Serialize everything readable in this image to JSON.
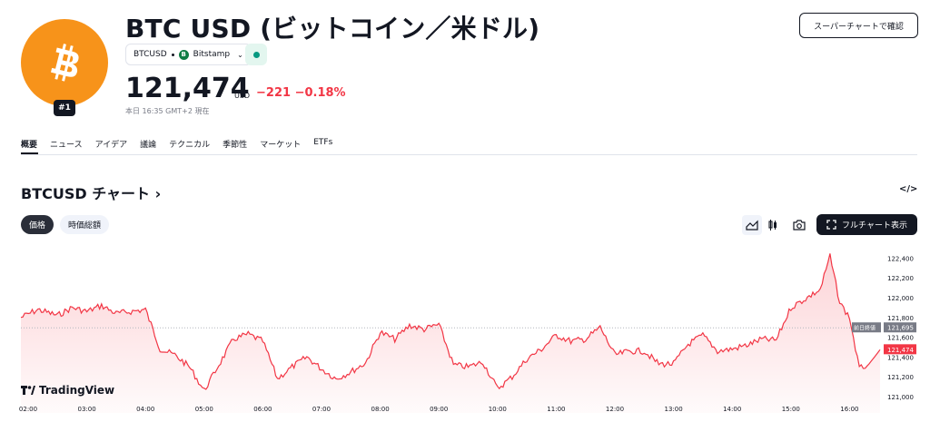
{
  "header": {
    "title": "BTC USD (ビットコイン／米ドル)",
    "rank_badge": "#1",
    "symbol": "BTCUSD",
    "exchange": "Bitstamp",
    "exchange_icon_letter": "B",
    "price": "121,474",
    "currency": "USD",
    "change": "−221",
    "change_pct": "−0.18%",
    "as_of": "本日 16:35 GMT+2 現在",
    "super_chart_button": "スーパーチャートで確認",
    "brand_color": "#f7931a",
    "down_color": "#f23645"
  },
  "tabs": [
    {
      "label": "概要",
      "active": true
    },
    {
      "label": "ニュース"
    },
    {
      "label": "アイデア"
    },
    {
      "label": "議論"
    },
    {
      "label": "テクニカル"
    },
    {
      "label": "季節性"
    },
    {
      "label": "マーケット"
    },
    {
      "label": "ETFs"
    }
  ],
  "section": {
    "title": "BTCUSD チャート",
    "title_chevron": "›",
    "embed_icon": "</>"
  },
  "controls": {
    "pill_price": "価格",
    "pill_marketcap": "時価総額",
    "fullscreen_button": "フルチャート表示",
    "icons": [
      "area-chart-icon",
      "candles-icon",
      "camera-icon",
      "fullscreen-icon"
    ]
  },
  "branding": {
    "tradingview": "TradingView"
  },
  "chart_data": {
    "type": "area",
    "x_ticks": [
      "02:00",
      "03:00",
      "04:00",
      "05:00",
      "06:00",
      "07:00",
      "08:00",
      "09:00",
      "10:00",
      "11:00",
      "12:00",
      "13:00",
      "14:00",
      "15:00",
      "16:00"
    ],
    "y_ticks": [
      "122,400",
      "122,200",
      "122,000",
      "121,800",
      "121,600",
      "121,400",
      "121,200",
      "121,000"
    ],
    "ylim": [
      121000,
      122450
    ],
    "x": [
      "01:50",
      "02:10",
      "02:30",
      "02:45",
      "03:00",
      "03:15",
      "03:30",
      "03:45",
      "04:00",
      "04:15",
      "04:30",
      "04:45",
      "05:00",
      "05:15",
      "05:30",
      "05:45",
      "06:00",
      "06:15",
      "06:30",
      "06:45",
      "07:00",
      "07:15",
      "07:30",
      "07:45",
      "08:00",
      "08:15",
      "08:30",
      "08:45",
      "09:00",
      "09:15",
      "09:30",
      "09:45",
      "10:00",
      "10:15",
      "10:30",
      "10:45",
      "11:00",
      "11:15",
      "11:30",
      "11:45",
      "12:00",
      "12:15",
      "12:30",
      "12:45",
      "13:00",
      "13:15",
      "13:30",
      "13:45",
      "14:00",
      "14:15",
      "14:30",
      "14:45",
      "15:00",
      "15:15",
      "15:30",
      "15:40",
      "15:50",
      "16:00",
      "16:10",
      "16:20",
      "16:35"
    ],
    "values": [
      121800,
      121880,
      121820,
      121900,
      121860,
      121920,
      121840,
      121860,
      121880,
      121480,
      121420,
      121300,
      121060,
      121320,
      121580,
      121630,
      121560,
      121180,
      121300,
      121400,
      121280,
      121180,
      121250,
      121340,
      121650,
      121580,
      121720,
      121680,
      121730,
      121320,
      121300,
      121350,
      121080,
      121200,
      121380,
      121480,
      121620,
      121560,
      121580,
      121700,
      121420,
      121460,
      121460,
      121330,
      121330,
      121530,
      121620,
      121460,
      121480,
      121520,
      121580,
      121570,
      121900,
      121990,
      122080,
      122420,
      121950,
      121800,
      121280,
      121330,
      121474
    ],
    "prev_close": {
      "label": "前日終値",
      "value": "121,695"
    },
    "last": {
      "value": "121,474"
    },
    "grid": false,
    "line_color": "#f23645"
  }
}
